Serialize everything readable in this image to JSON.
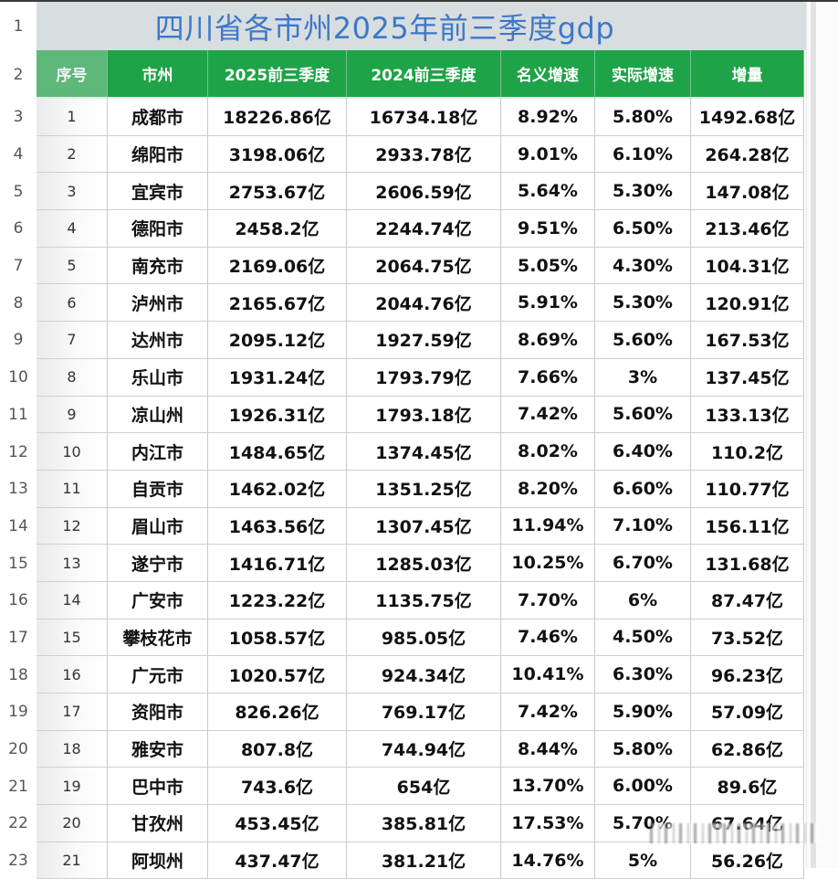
{
  "sheet": {
    "title": "四川省各市州2025年前三季度gdp",
    "row_numbers": [
      "1",
      "2",
      "3",
      "4",
      "5",
      "6",
      "7",
      "8",
      "9",
      "10",
      "11",
      "12",
      "13",
      "14",
      "15",
      "16",
      "17",
      "18",
      "19",
      "20",
      "21",
      "22",
      "23"
    ],
    "columns": [
      "序号",
      "市州",
      "2025前三季度",
      "2024前三季度",
      "名义增速",
      "实际增速",
      "增量"
    ],
    "rows": [
      {
        "no": "1",
        "city": "成都市",
        "gdp2025": "18226.86亿",
        "gdp2024": "16734.18亿",
        "nominal": "8.92%",
        "real": "5.80%",
        "increase": "1492.68亿"
      },
      {
        "no": "2",
        "city": "绵阳市",
        "gdp2025": "3198.06亿",
        "gdp2024": "2933.78亿",
        "nominal": "9.01%",
        "real": "6.10%",
        "increase": "264.28亿"
      },
      {
        "no": "3",
        "city": "宜宾市",
        "gdp2025": "2753.67亿",
        "gdp2024": "2606.59亿",
        "nominal": "5.64%",
        "real": "5.30%",
        "increase": "147.08亿"
      },
      {
        "no": "4",
        "city": "德阳市",
        "gdp2025": "2458.2亿",
        "gdp2024": "2244.74亿",
        "nominal": "9.51%",
        "real": "6.50%",
        "increase": "213.46亿"
      },
      {
        "no": "5",
        "city": "南充市",
        "gdp2025": "2169.06亿",
        "gdp2024": "2064.75亿",
        "nominal": "5.05%",
        "real": "4.30%",
        "increase": "104.31亿"
      },
      {
        "no": "6",
        "city": "泸州市",
        "gdp2025": "2165.67亿",
        "gdp2024": "2044.76亿",
        "nominal": "5.91%",
        "real": "5.30%",
        "increase": "120.91亿"
      },
      {
        "no": "7",
        "city": "达州市",
        "gdp2025": "2095.12亿",
        "gdp2024": "1927.59亿",
        "nominal": "8.69%",
        "real": "5.60%",
        "increase": "167.53亿"
      },
      {
        "no": "8",
        "city": "乐山市",
        "gdp2025": "1931.24亿",
        "gdp2024": "1793.79亿",
        "nominal": "7.66%",
        "real": "3%",
        "increase": "137.45亿"
      },
      {
        "no": "9",
        "city": "凉山州",
        "gdp2025": "1926.31亿",
        "gdp2024": "1793.18亿",
        "nominal": "7.42%",
        "real": "5.60%",
        "increase": "133.13亿"
      },
      {
        "no": "10",
        "city": "内江市",
        "gdp2025": "1484.65亿",
        "gdp2024": "1374.45亿",
        "nominal": "8.02%",
        "real": "6.40%",
        "increase": "110.2亿"
      },
      {
        "no": "11",
        "city": "自贡市",
        "gdp2025": "1462.02亿",
        "gdp2024": "1351.25亿",
        "nominal": "8.20%",
        "real": "6.60%",
        "increase": "110.77亿"
      },
      {
        "no": "12",
        "city": "眉山市",
        "gdp2025": "1463.56亿",
        "gdp2024": "1307.45亿",
        "nominal": "11.94%",
        "real": "7.10%",
        "increase": "156.11亿"
      },
      {
        "no": "13",
        "city": "遂宁市",
        "gdp2025": "1416.71亿",
        "gdp2024": "1285.03亿",
        "nominal": "10.25%",
        "real": "6.70%",
        "increase": "131.68亿"
      },
      {
        "no": "14",
        "city": "广安市",
        "gdp2025": "1223.22亿",
        "gdp2024": "1135.75亿",
        "nominal": "7.70%",
        "real": "6%",
        "increase": "87.47亿"
      },
      {
        "no": "15",
        "city": "攀枝花市",
        "gdp2025": "1058.57亿",
        "gdp2024": "985.05亿",
        "nominal": "7.46%",
        "real": "4.50%",
        "increase": "73.52亿"
      },
      {
        "no": "16",
        "city": "广元市",
        "gdp2025": "1020.57亿",
        "gdp2024": "924.34亿",
        "nominal": "10.41%",
        "real": "6.30%",
        "increase": "96.23亿"
      },
      {
        "no": "17",
        "city": "资阳市",
        "gdp2025": "826.26亿",
        "gdp2024": "769.17亿",
        "nominal": "7.42%",
        "real": "5.90%",
        "increase": "57.09亿"
      },
      {
        "no": "18",
        "city": "雅安市",
        "gdp2025": "807.8亿",
        "gdp2024": "744.94亿",
        "nominal": "8.44%",
        "real": "5.80%",
        "increase": "62.86亿"
      },
      {
        "no": "19",
        "city": "巴中市",
        "gdp2025": "743.6亿",
        "gdp2024": "654亿",
        "nominal": "13.70%",
        "real": "6.00%",
        "increase": "89.6亿"
      },
      {
        "no": "20",
        "city": "甘孜州",
        "gdp2025": "453.45亿",
        "gdp2024": "385.81亿",
        "nominal": "17.53%",
        "real": "5.70%",
        "increase": "67.64亿"
      },
      {
        "no": "21",
        "city": "阿坝州",
        "gdp2025": "437.47亿",
        "gdp2024": "381.21亿",
        "nominal": "14.76%",
        "real": "5%",
        "increase": "56.26亿"
      }
    ]
  },
  "colors": {
    "title_text": "#3d78c9",
    "title_bg": "#d8dde0",
    "header_bg": "#1fa348",
    "header_index_bg": "#5db87a",
    "header_text": "#ffffff"
  }
}
